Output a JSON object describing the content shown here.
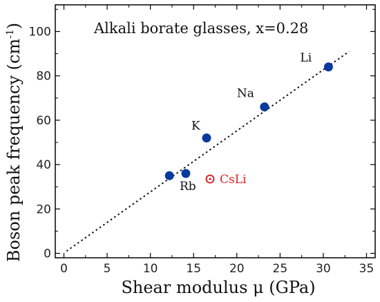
{
  "chart_data": {
    "type": "scatter",
    "title": "Alkali borate glasses, x=0.28",
    "xlabel": "Shear modulus μ (GPa)",
    "ylabel_main": "Boson peak frequency (cm",
    "ylabel_sup": "-1",
    "ylabel_close": ")",
    "xlim": [
      -1,
      36
    ],
    "ylim": [
      -2,
      112
    ],
    "xticks": [
      0,
      5,
      10,
      15,
      20,
      25,
      30,
      35
    ],
    "yticks": [
      0,
      20,
      40,
      60,
      80,
      100
    ],
    "grid": false,
    "points": [
      {
        "label": "",
        "x": 12.2,
        "y": 35,
        "style": "filled"
      },
      {
        "label": "Rb",
        "x": 14.1,
        "y": 36,
        "style": "filled"
      },
      {
        "label": "K",
        "x": 16.5,
        "y": 52,
        "style": "filled"
      },
      {
        "label": "Na",
        "x": 23.2,
        "y": 66,
        "style": "filled"
      },
      {
        "label": "Li",
        "x": 30.6,
        "y": 84,
        "style": "filled"
      },
      {
        "label": "CsLi",
        "x": 16.9,
        "y": 33.5,
        "style": "open"
      }
    ],
    "trendline": {
      "style": "dotted",
      "from": [
        0.3,
        1
      ],
      "to": [
        33,
        91
      ]
    },
    "colors": {
      "filled_point": "#0b3a9e",
      "open_point": "#e0242b",
      "axis": "#000000"
    }
  }
}
